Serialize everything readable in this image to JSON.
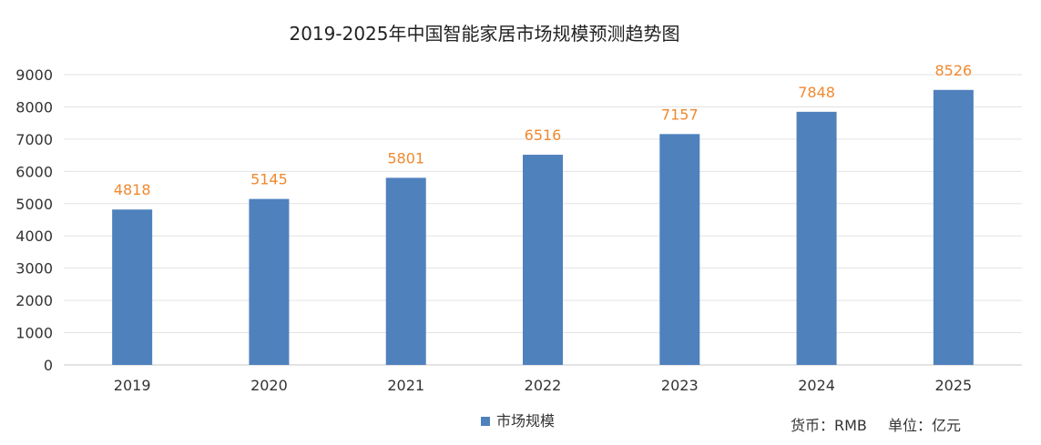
{
  "chart_data": {
    "type": "bar",
    "title": "2019-2025年中国智能家居市场规模预测趋势图",
    "categories": [
      "2019",
      "2020",
      "2021",
      "2022",
      "2023",
      "2024",
      "2025"
    ],
    "series": [
      {
        "name": "市场规模",
        "values": [
          4818,
          5145,
          5801,
          6516,
          7157,
          7848,
          8526
        ],
        "color": "#4F81BD"
      }
    ],
    "data_label_color": "#F0892F",
    "ylim": [
      0,
      9000
    ],
    "yticks": [
      "0",
      "1000",
      "2000",
      "3000",
      "4000",
      "5000",
      "6000",
      "7000",
      "8000",
      "9000"
    ],
    "grid": true,
    "legend_position": "bottom-center",
    "notes": {
      "currency": "货币：RMB",
      "unit": "单位：亿元"
    }
  }
}
